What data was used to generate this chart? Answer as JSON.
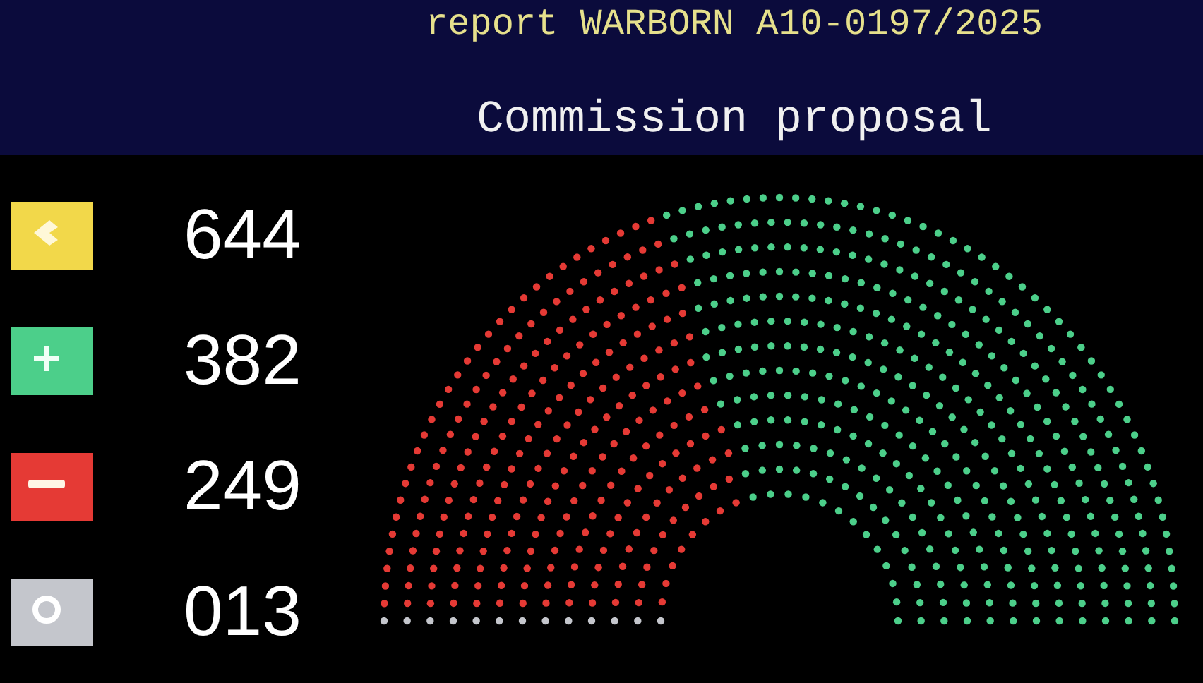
{
  "chart_data": {
    "type": "other",
    "title": "report WARBORN A10-0197/2025",
    "subtitle": "Commission proposal",
    "categories": [
      null,
      null,
      null,
      null
    ],
    "values": [
      644,
      382,
      249,
      13
    ],
    "colors": [
      "#f2d84a",
      "#4ccf8a",
      "#e53a35",
      "#c4c6cc"
    ],
    "value_labels": [
      "644",
      "382",
      "249",
      "013"
    ]
  }
}
